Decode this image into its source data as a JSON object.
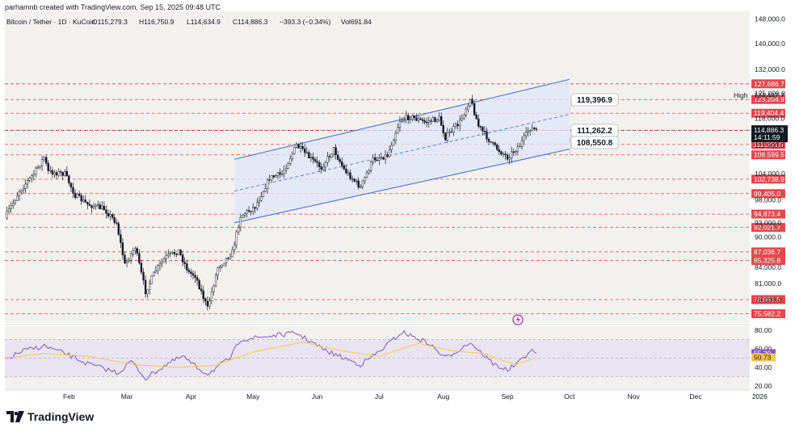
{
  "header": {
    "author_line": "parhamnb created with TradingView.com, Sep 15, 2025 09:48 UTC"
  },
  "brand": {
    "name": "TradingView"
  },
  "colors": {
    "up": "#ffffff",
    "down": "#131722",
    "level": "#e5484d",
    "channel": "#4a72d6",
    "rsi": "#7e57c2",
    "rsi_ma": "#f7c948",
    "last_price": "#131722"
  },
  "chart_data": [
    {
      "type": "candlestick",
      "title": "Bitcoin / Tether · 1D · KuCoin",
      "ohlc_label": {
        "open": "O115,279.3",
        "high": "H116,750.9",
        "low": "L114,634.9",
        "close": "C114,886.3",
        "change": "−393.3 (−0.34%)",
        "volume": "Vol691.84"
      },
      "x_ticks": [
        "Feb",
        "Mar",
        "Apr",
        "May",
        "Jun",
        "Jul",
        "Aug",
        "Sep",
        "Oct",
        "Nov",
        "Dec",
        "2026"
      ],
      "y_ticks": [
        148000,
        140000,
        132000,
        125000,
        118000,
        111000,
        104000,
        98000,
        93000,
        90000,
        84000,
        81000,
        78000
      ],
      "ylim": [
        74000,
        149000
      ],
      "y_scale": "log",
      "path": [
        [
          "2025-01-01",
          94000
        ],
        [
          "2025-01-08",
          100000
        ],
        [
          "2025-01-15",
          104000
        ],
        [
          "2025-01-20",
          108000
        ],
        [
          "2025-01-22",
          104500
        ],
        [
          "2025-01-30",
          104000
        ],
        [
          "2025-02-04",
          99000
        ],
        [
          "2025-02-10",
          97000
        ],
        [
          "2025-02-18",
          96000
        ],
        [
          "2025-02-24",
          93000
        ],
        [
          "2025-02-28",
          84500
        ],
        [
          "2025-03-05",
          88000
        ],
        [
          "2025-03-10",
          79500
        ],
        [
          "2025-03-15",
          83500
        ],
        [
          "2025-03-20",
          86000
        ],
        [
          "2025-03-26",
          87200
        ],
        [
          "2025-03-31",
          83000
        ],
        [
          "2025-04-03",
          82500
        ],
        [
          "2025-04-09",
          76500
        ],
        [
          "2025-04-14",
          84000
        ],
        [
          "2025-04-21",
          87000
        ],
        [
          "2025-04-25",
          94500
        ],
        [
          "2025-05-02",
          96500
        ],
        [
          "2025-05-09",
          103000
        ],
        [
          "2025-05-15",
          104000
        ],
        [
          "2025-05-22",
          111000
        ],
        [
          "2025-05-28",
          108000
        ],
        [
          "2025-06-03",
          105500
        ],
        [
          "2025-06-09",
          110000
        ],
        [
          "2025-06-14",
          105000
        ],
        [
          "2025-06-22",
          100800
        ],
        [
          "2025-06-28",
          107500
        ],
        [
          "2025-07-05",
          108500
        ],
        [
          "2025-07-11",
          117500
        ],
        [
          "2025-07-16",
          118500
        ],
        [
          "2025-07-23",
          117000
        ],
        [
          "2025-07-30",
          118000
        ],
        [
          "2025-08-02",
          113000
        ],
        [
          "2025-08-09",
          117000
        ],
        [
          "2025-08-14",
          123500
        ],
        [
          "2025-08-18",
          116000
        ],
        [
          "2025-08-25",
          111000
        ],
        [
          "2025-09-01",
          108000
        ],
        [
          "2025-09-07",
          111000
        ],
        [
          "2025-09-12",
          115500
        ],
        [
          "2025-09-15",
          114886
        ]
      ],
      "levels": [
        127686.7,
        123204.9,
        119404.4,
        114803.3,
        111201.0,
        108599.5,
        102738.9,
        99405.0,
        94873.4,
        92021.7,
        87036.7,
        85325.8,
        78061.5,
        75582.2
      ],
      "last_price": {
        "value": "114,886.3",
        "countdown": "14:11:59"
      },
      "high_marker": {
        "label": "High",
        "value": "124,447.7"
      },
      "channel": {
        "lower": [
          [
            "2025-04-22",
            93000
          ],
          [
            "2025-10-01",
            110000
          ]
        ],
        "upper": [
          [
            "2025-04-22",
            107500
          ],
          [
            "2025-10-01",
            129000
          ]
        ]
      },
      "callouts": [
        {
          "text": "119,396.9",
          "price": 119396.9
        },
        {
          "text": "111,262.2",
          "price": 111262.2
        },
        {
          "text": "108,550.8",
          "price": 108550.8
        }
      ]
    },
    {
      "type": "line",
      "title": "RSI",
      "y_ticks": [
        80.0,
        60.0,
        40.0,
        20.0
      ],
      "ylim": [
        20,
        80
      ],
      "bands": [
        70,
        30
      ],
      "series": [
        {
          "values": [
            [
              "2025-01-01",
              48
            ],
            [
              "2025-01-10",
              58
            ],
            [
              "2025-01-20",
              63
            ],
            [
              "2025-01-30",
              55
            ],
            [
              "2025-02-10",
              44
            ],
            [
              "2025-02-25",
              34
            ],
            [
              "2025-03-03",
              47
            ],
            [
              "2025-03-10",
              28
            ],
            [
              "2025-03-20",
              43
            ],
            [
              "2025-03-28",
              52
            ],
            [
              "2025-04-03",
              41
            ],
            [
              "2025-04-09",
              33
            ],
            [
              "2025-04-20",
              50
            ],
            [
              "2025-04-25",
              70
            ],
            [
              "2025-05-10",
              74
            ],
            [
              "2025-05-22",
              77
            ],
            [
              "2025-06-05",
              58
            ],
            [
              "2025-06-22",
              43
            ],
            [
              "2025-07-01",
              57
            ],
            [
              "2025-07-12",
              78
            ],
            [
              "2025-07-25",
              66
            ],
            [
              "2025-08-02",
              50
            ],
            [
              "2025-08-14",
              67
            ],
            [
              "2025-08-25",
              44
            ],
            [
              "2025-09-01",
              37
            ],
            [
              "2025-09-07",
              46
            ],
            [
              "2025-09-12",
              58
            ],
            [
              "2025-09-15",
              55.2
            ]
          ]
        },
        {
          "values": [
            [
              "2025-01-01",
              50
            ],
            [
              "2025-01-20",
              55
            ],
            [
              "2025-02-10",
              52
            ],
            [
              "2025-03-05",
              43
            ],
            [
              "2025-03-25",
              40
            ],
            [
              "2025-04-12",
              42
            ],
            [
              "2025-05-02",
              57
            ],
            [
              "2025-05-25",
              67
            ],
            [
              "2025-06-15",
              57
            ],
            [
              "2025-07-01",
              52
            ],
            [
              "2025-07-20",
              66
            ],
            [
              "2025-08-05",
              58
            ],
            [
              "2025-08-20",
              55
            ],
            [
              "2025-09-05",
              43
            ],
            [
              "2025-09-15",
              50.7
            ]
          ]
        }
      ],
      "last": [
        {
          "text": "55.20",
          "value": 55.2
        },
        {
          "text": "50.73",
          "value": 50.73
        }
      ]
    }
  ]
}
